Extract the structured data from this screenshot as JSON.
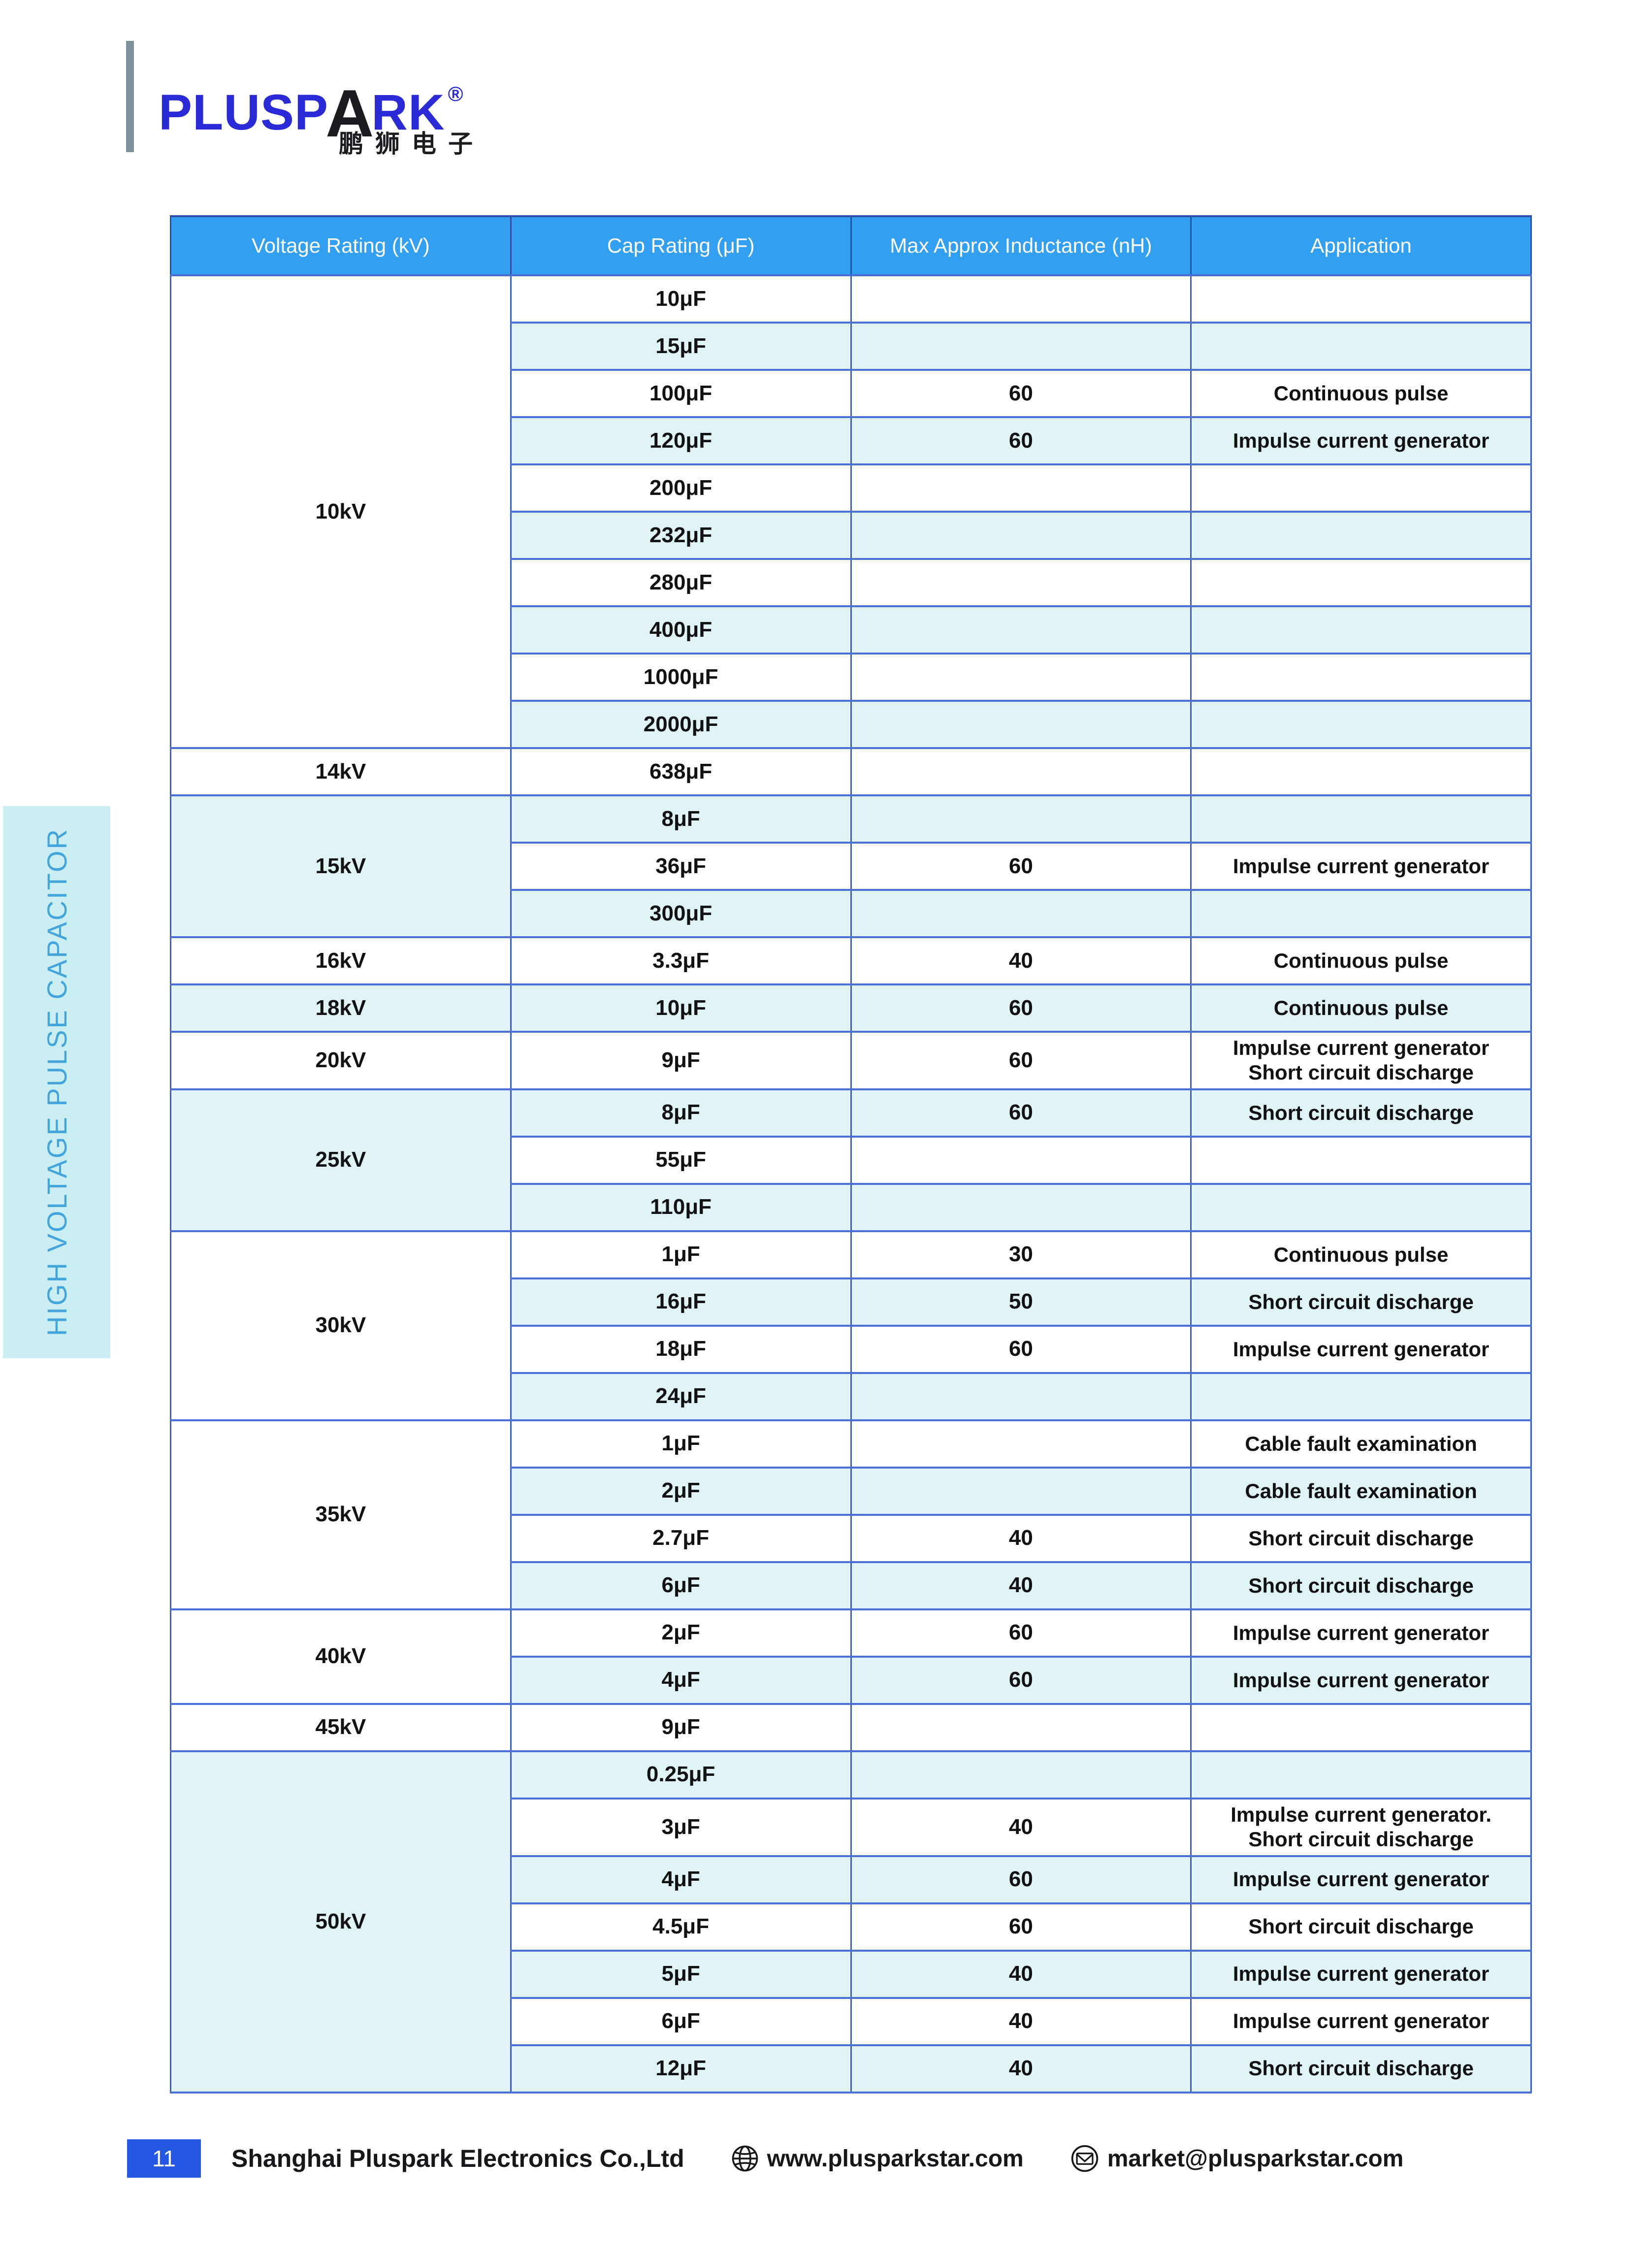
{
  "page": {
    "number": "11"
  },
  "logo": {
    "wordmark_pre": "PLUSP",
    "wordmark_a": "A",
    "wordmark_post": "RK",
    "registered": "®",
    "chinese": "鹏狮电子"
  },
  "sidebar": {
    "label": "HIGH VOLTAGE PULSE CAPACITOR"
  },
  "table": {
    "columns": [
      "Voltage Rating (kV)",
      "Cap Rating (μF)",
      "Max Approx Inductance (nH)",
      "Application"
    ],
    "groups": [
      {
        "voltage": "10kV",
        "rows": [
          {
            "cap": "10μF",
            "inductance": "",
            "application": ""
          },
          {
            "cap": "15μF",
            "inductance": "",
            "application": ""
          },
          {
            "cap": "100μF",
            "inductance": "60",
            "application": "Continuous pulse"
          },
          {
            "cap": "120μF",
            "inductance": "60",
            "application": "Impulse current generator"
          },
          {
            "cap": "200μF",
            "inductance": "",
            "application": ""
          },
          {
            "cap": "232μF",
            "inductance": "",
            "application": ""
          },
          {
            "cap": "280μF",
            "inductance": "",
            "application": ""
          },
          {
            "cap": "400μF",
            "inductance": "",
            "application": ""
          },
          {
            "cap": "1000μF",
            "inductance": "",
            "application": ""
          },
          {
            "cap": "2000μF",
            "inductance": "",
            "application": ""
          }
        ]
      },
      {
        "voltage": "14kV",
        "rows": [
          {
            "cap": "638μF",
            "inductance": "",
            "application": ""
          }
        ]
      },
      {
        "voltage": "15kV",
        "rows": [
          {
            "cap": "8μF",
            "inductance": "",
            "application": ""
          },
          {
            "cap": "36μF",
            "inductance": "60",
            "application": "Impulse current generator"
          },
          {
            "cap": "300μF",
            "inductance": "",
            "application": ""
          }
        ]
      },
      {
        "voltage": "16kV",
        "rows": [
          {
            "cap": "3.3μF",
            "inductance": "40",
            "application": "Continuous pulse"
          }
        ]
      },
      {
        "voltage": "18kV",
        "rows": [
          {
            "cap": "10μF",
            "inductance": "60",
            "application": "Continuous pulse"
          }
        ]
      },
      {
        "voltage": "20kV",
        "rows": [
          {
            "cap": "9μF",
            "inductance": "60",
            "application": "Impulse current generator\nShort circuit discharge"
          }
        ]
      },
      {
        "voltage": "25kV",
        "rows": [
          {
            "cap": "8μF",
            "inductance": "60",
            "application": "Short circuit discharge"
          },
          {
            "cap": "55μF",
            "inductance": "",
            "application": ""
          },
          {
            "cap": "110μF",
            "inductance": "",
            "application": ""
          }
        ]
      },
      {
        "voltage": "30kV",
        "rows": [
          {
            "cap": "1μF",
            "inductance": "30",
            "application": "Continuous pulse"
          },
          {
            "cap": "16μF",
            "inductance": "50",
            "application": "Short circuit discharge"
          },
          {
            "cap": "18μF",
            "inductance": "60",
            "application": "Impulse current generator"
          },
          {
            "cap": "24μF",
            "inductance": "",
            "application": ""
          }
        ]
      },
      {
        "voltage": "35kV",
        "rows": [
          {
            "cap": "1μF",
            "inductance": "",
            "application": "Cable fault examination"
          },
          {
            "cap": "2μF",
            "inductance": "",
            "application": "Cable fault examination"
          },
          {
            "cap": "2.7μF",
            "inductance": "40",
            "application": "Short circuit discharge"
          },
          {
            "cap": "6μF",
            "inductance": "40",
            "application": "Short circuit discharge"
          }
        ]
      },
      {
        "voltage": "40kV",
        "rows": [
          {
            "cap": "2μF",
            "inductance": "60",
            "application": "Impulse current generator"
          },
          {
            "cap": "4μF",
            "inductance": "60",
            "application": "Impulse current generator"
          }
        ]
      },
      {
        "voltage": "45kV",
        "rows": [
          {
            "cap": "9μF",
            "inductance": "",
            "application": ""
          }
        ]
      },
      {
        "voltage": "50kV",
        "rows": [
          {
            "cap": "0.25μF",
            "inductance": "",
            "application": ""
          },
          {
            "cap": "3μF",
            "inductance": "40",
            "application": "Impulse current generator.\nShort circuit discharge"
          },
          {
            "cap": "4μF",
            "inductance": "60",
            "application": "Impulse current generator"
          },
          {
            "cap": "4.5μF",
            "inductance": "60",
            "application": "Short circuit discharge"
          },
          {
            "cap": "5μF",
            "inductance": "40",
            "application": "Impulse current generator"
          },
          {
            "cap": "6μF",
            "inductance": "40",
            "application": "Impulse current generator"
          },
          {
            "cap": "12μF",
            "inductance": "40",
            "application": "Short circuit discharge"
          }
        ]
      }
    ]
  },
  "footer": {
    "page_number": "11",
    "company": "Shanghai Pluspark Electronics Co.,Ltd",
    "website": "www.plusparkstar.com",
    "email": "market@plusparkstar.com"
  },
  "colors": {
    "header_bg": "#339ff0",
    "row_alt_bg": "#e0f4f6",
    "border_blue": "#4a70d8",
    "sidebar_bg": "#cbeef3",
    "sidebar_text": "#43a5db",
    "footer_badge": "#2457e2",
    "logo_blue": "#2a2ad6"
  }
}
